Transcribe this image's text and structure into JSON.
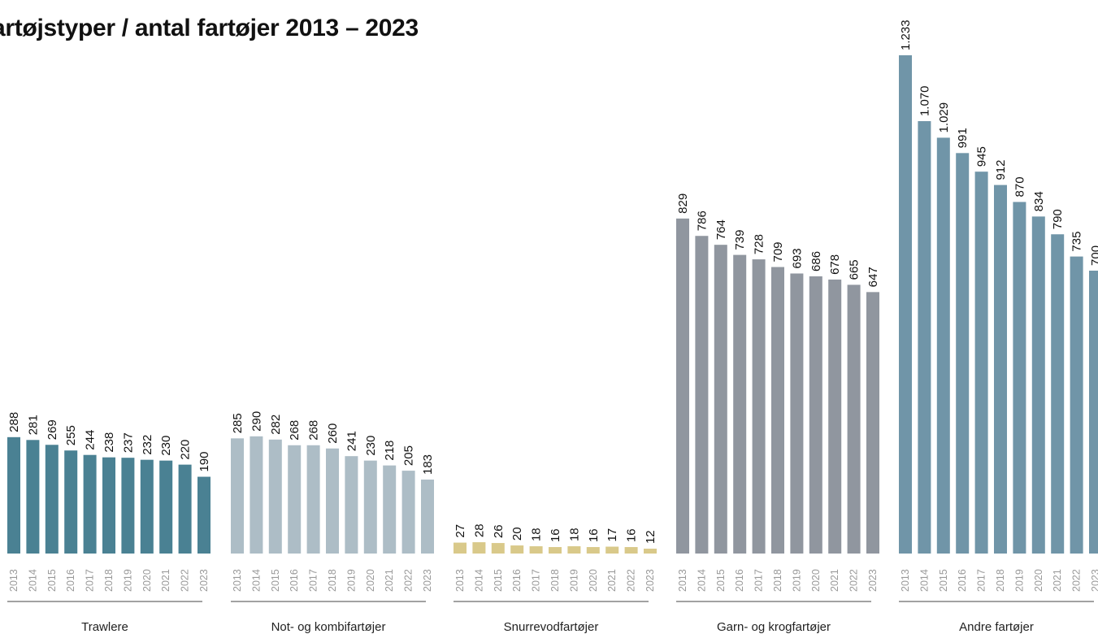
{
  "chart_data": {
    "type": "bar",
    "title": "artøjstyper / antal fartøjer 2013 – 2023",
    "years": [
      "2013",
      "2014",
      "2015",
      "2016",
      "2017",
      "2018",
      "2019",
      "2020",
      "2021",
      "2022",
      "2023"
    ],
    "ylim": [
      0,
      1233
    ],
    "grid": false,
    "groups": [
      {
        "name": "Trawlere",
        "color": "#4a8193",
        "values": [
          288,
          281,
          269,
          255,
          244,
          238,
          237,
          232,
          230,
          220,
          190
        ],
        "labels": [
          "288",
          "281",
          "269",
          "255",
          "244",
          "238",
          "237",
          "232",
          "230",
          "220",
          "190"
        ]
      },
      {
        "name": "Not- og kombifartøjer",
        "color": "#adbdc6",
        "values": [
          285,
          290,
          282,
          268,
          268,
          260,
          241,
          230,
          218,
          205,
          183
        ],
        "labels": [
          "285",
          "290",
          "282",
          "268",
          "268",
          "260",
          "241",
          "230",
          "218",
          "205",
          "183"
        ]
      },
      {
        "name": "Snurrevodfartøjer",
        "color": "#d9c98a",
        "values": [
          27,
          28,
          26,
          20,
          18,
          16,
          18,
          16,
          17,
          16,
          12
        ],
        "labels": [
          "27",
          "28",
          "26",
          "20",
          "18",
          "16",
          "18",
          "16",
          "17",
          "16",
          "12"
        ]
      },
      {
        "name": "Garn- og krogfartøjer",
        "color": "#90969f",
        "values": [
          829,
          786,
          764,
          739,
          728,
          709,
          693,
          686,
          678,
          665,
          647
        ],
        "labels": [
          "829",
          "786",
          "764",
          "739",
          "728",
          "709",
          "693",
          "686",
          "678",
          "665",
          "647"
        ]
      },
      {
        "name": "Andre fartøjer",
        "color": "#7095a8",
        "values": [
          1233,
          1070,
          1029,
          991,
          945,
          912,
          870,
          834,
          790,
          735,
          700
        ],
        "labels": [
          "1.233",
          "1.070",
          "1.029",
          "991",
          "945",
          "912",
          "870",
          "834",
          "790",
          "735",
          "700"
        ]
      }
    ]
  }
}
